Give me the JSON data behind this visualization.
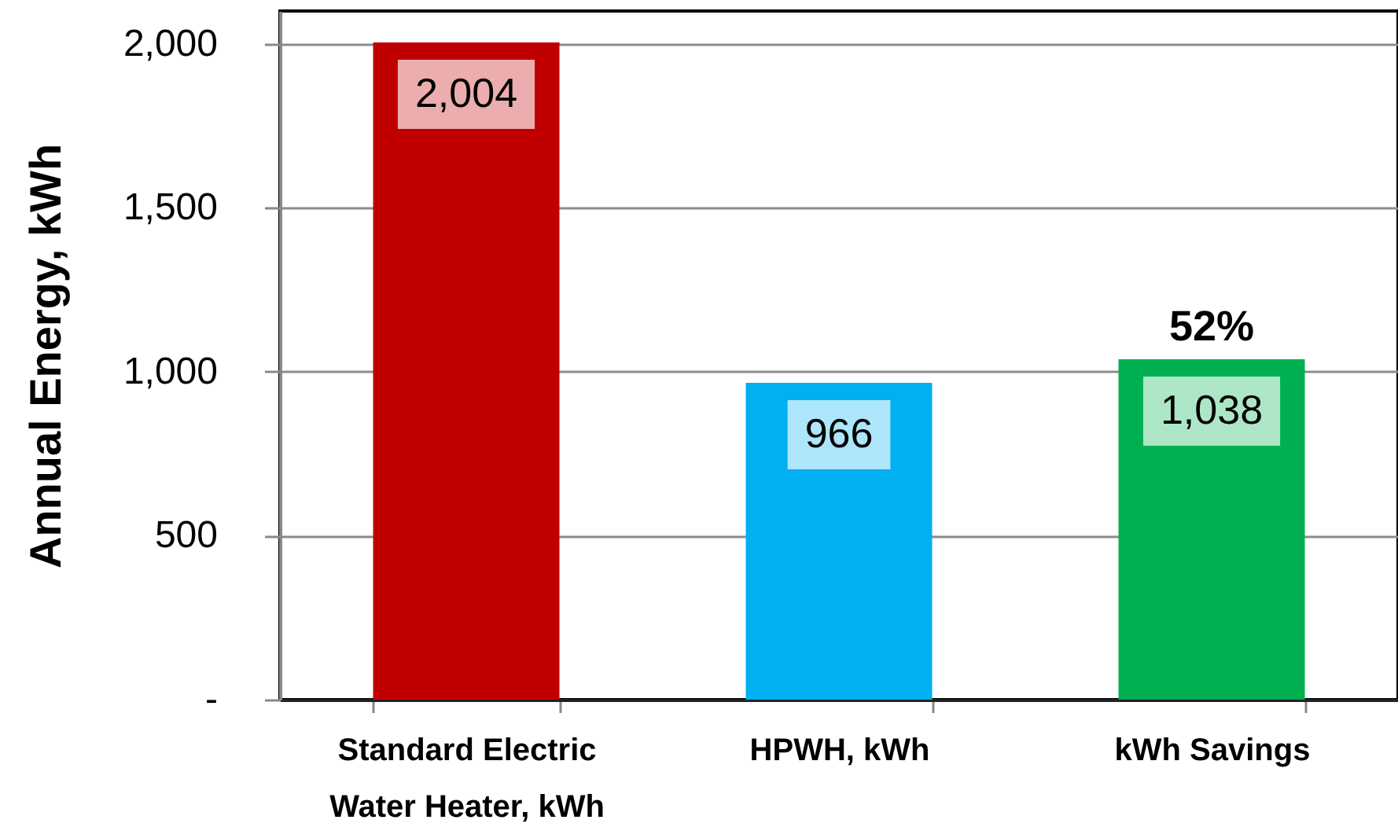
{
  "chart_data": {
    "type": "bar",
    "ylabel": "Annual Energy, kWh",
    "categories": [
      "Standard Electric Water Heater, kWh",
      "HPWH, kWh",
      "kWh Savings"
    ],
    "values": [
      2004,
      966,
      1038
    ],
    "colors": [
      "#c00000",
      "#00b0f0",
      "#00b050"
    ],
    "value_labels": [
      "2,004",
      "966",
      "1,038"
    ],
    "ylim": [
      0,
      2100
    ],
    "yticks": [
      {
        "value": 0,
        "label": "-"
      },
      500,
      {
        "value": 1000,
        "label": "1,000"
      },
      {
        "value": 1500,
        "label": "1,500"
      },
      {
        "value": 2000,
        "label": "2,000"
      }
    ],
    "grid": "y",
    "annotations": [
      {
        "text": "52%",
        "x": "kWh Savings",
        "y": 1038
      }
    ]
  }
}
